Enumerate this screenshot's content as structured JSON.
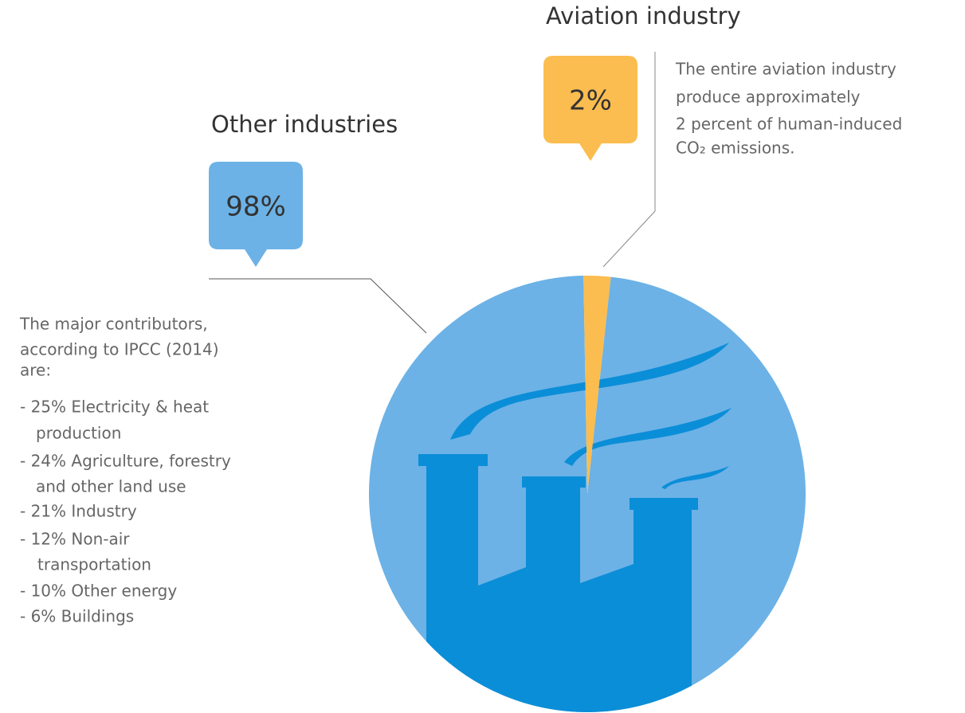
{
  "chart_data": {
    "type": "pie",
    "categories": [
      "Other industries",
      "Aviation industry"
    ],
    "values": [
      98,
      2
    ],
    "value_labels": [
      "98%",
      "2%"
    ],
    "colors": [
      "#6cb2e6",
      "#fbbd4f"
    ],
    "annotations": [
      [
        "The major contributors,",
        "according to IPCC (2014)",
        "are:",
        "- 25% Electricity & heat",
        "production",
        "- 24% Agriculture, forestry",
        "and other land use",
        "- 21% Industry",
        "- 12% Non-air",
        "transportation",
        "- 10% Other energy",
        "- 6% Buildings"
      ],
      [
        "The entire aviation industry",
        "produce approximately",
        "2 percent of human-induced",
        "CO₂ emissions."
      ]
    ]
  }
}
